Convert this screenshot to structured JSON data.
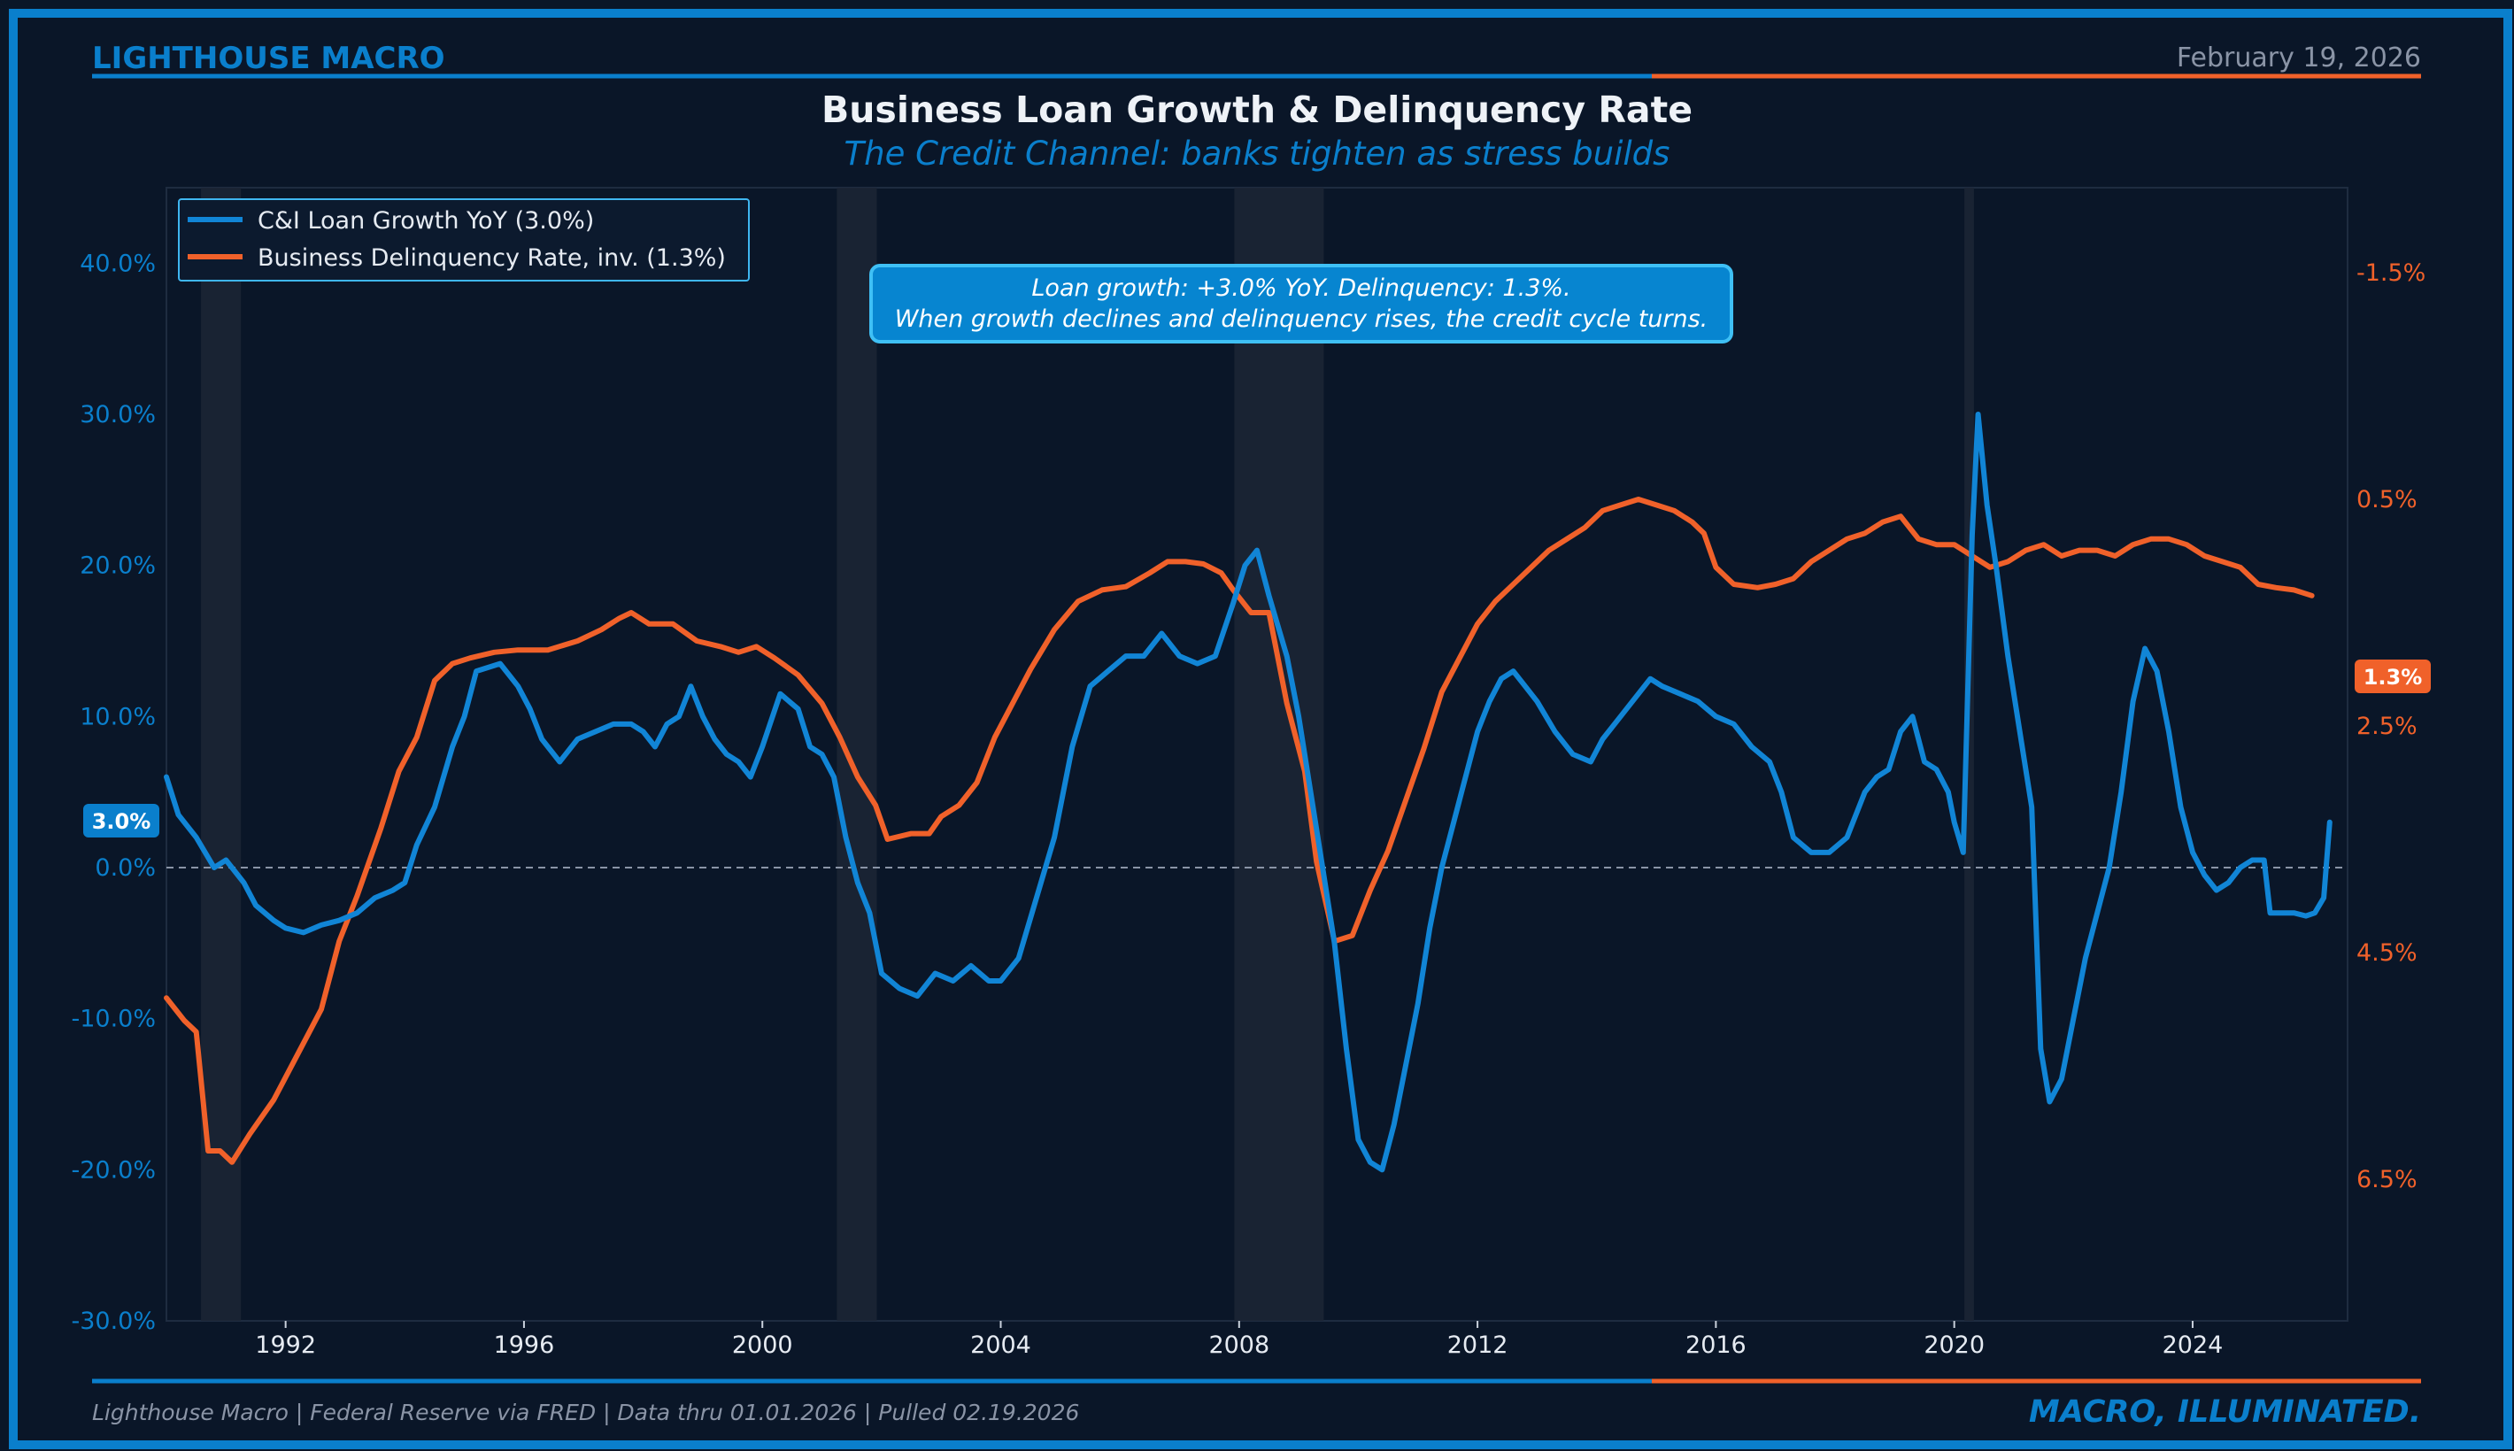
{
  "header": {
    "brand": "LIGHTHOUSE MACRO",
    "date": "February 19, 2026"
  },
  "footer": {
    "source": "Lighthouse Macro | Federal Reserve via FRED | Data thru 01.01.2026 | Pulled 02.19.2026",
    "tagline": "MACRO, ILLUMINATED."
  },
  "colors": {
    "background": "#0a1628",
    "accent_blue": "#0a7fcc",
    "accent_orange": "#f0612a",
    "loan_line": "#1185d6",
    "delinquency_line": "#f0612a",
    "recession_shade": "#1c2635"
  },
  "annotation": {
    "line1": "Loan growth: +3.0% YoY. Delinquency: 1.3%.",
    "line2": "When growth declines and delinquency rises, the credit cycle turns."
  },
  "chart_data": {
    "type": "line",
    "title": "Business Loan Growth & Delinquency Rate",
    "subtitle": "The Credit Channel: banks tighten as stress builds",
    "legend_position": "top-left",
    "x_ticks": [
      "1992",
      "1996",
      "2000",
      "2004",
      "2008",
      "2012",
      "2016",
      "2020",
      "2024"
    ],
    "x_range": [
      1990.0,
      2026.6
    ],
    "left_axis": {
      "range": [
        -30,
        45
      ],
      "ticks": [
        40,
        30,
        20,
        10,
        0,
        -10,
        -20,
        -30
      ],
      "tick_labels": [
        "40.0%",
        "30.0%",
        "20.0%",
        "10.0%",
        "0.0%",
        "-10.0%",
        "-20.0%",
        "-30.0%"
      ],
      "latest_label": "3.0%"
    },
    "right_axis": {
      "inverted": true,
      "range": [
        -2.25,
        7.75
      ],
      "ticks": [
        -1.5,
        0.5,
        2.5,
        4.5,
        6.5
      ],
      "tick_labels": [
        "-1.5%",
        "0.5%",
        "2.5%",
        "4.5%",
        "6.5%"
      ],
      "latest_label": "1.3%"
    },
    "zero_line": 0,
    "recessions": [
      [
        1990.58,
        1991.25
      ],
      [
        2001.25,
        2001.92
      ],
      [
        2007.92,
        2009.42
      ],
      [
        2020.17,
        2020.33
      ]
    ],
    "series": [
      {
        "name": "C&I Loan Growth YoY (3.0%)",
        "axis": "left",
        "color": "#1185d6",
        "points": [
          [
            1990.0,
            6
          ],
          [
            1990.2,
            3.5
          ],
          [
            1990.5,
            2
          ],
          [
            1990.8,
            0
          ],
          [
            1991.0,
            0.5
          ],
          [
            1991.3,
            -1
          ],
          [
            1991.5,
            -2.5
          ],
          [
            1991.8,
            -3.5
          ],
          [
            1992.0,
            -4
          ],
          [
            1992.3,
            -4.3
          ],
          [
            1992.6,
            -3.8
          ],
          [
            1992.9,
            -3.5
          ],
          [
            1993.2,
            -3
          ],
          [
            1993.5,
            -2
          ],
          [
            1993.8,
            -1.5
          ],
          [
            1994.0,
            -1
          ],
          [
            1994.2,
            1.5
          ],
          [
            1994.5,
            4
          ],
          [
            1994.8,
            8
          ],
          [
            1995.0,
            10
          ],
          [
            1995.2,
            13
          ],
          [
            1995.6,
            13.5
          ],
          [
            1995.9,
            12
          ],
          [
            1996.1,
            10.5
          ],
          [
            1996.3,
            8.5
          ],
          [
            1996.6,
            7
          ],
          [
            1996.9,
            8.5
          ],
          [
            1997.2,
            9
          ],
          [
            1997.5,
            9.5
          ],
          [
            1997.8,
            9.5
          ],
          [
            1998.0,
            9
          ],
          [
            1998.2,
            8
          ],
          [
            1998.4,
            9.5
          ],
          [
            1998.6,
            10
          ],
          [
            1998.8,
            12
          ],
          [
            1999.0,
            10
          ],
          [
            1999.2,
            8.5
          ],
          [
            1999.4,
            7.5
          ],
          [
            1999.6,
            7
          ],
          [
            1999.8,
            6
          ],
          [
            2000.0,
            8
          ],
          [
            2000.3,
            11.5
          ],
          [
            2000.6,
            10.5
          ],
          [
            2000.8,
            8
          ],
          [
            2001.0,
            7.5
          ],
          [
            2001.2,
            6
          ],
          [
            2001.4,
            2
          ],
          [
            2001.6,
            -1
          ],
          [
            2001.8,
            -3
          ],
          [
            2002.0,
            -7
          ],
          [
            2002.3,
            -8
          ],
          [
            2002.6,
            -8.5
          ],
          [
            2002.9,
            -7
          ],
          [
            2003.2,
            -7.5
          ],
          [
            2003.5,
            -6.5
          ],
          [
            2003.8,
            -7.5
          ],
          [
            2004.0,
            -7.5
          ],
          [
            2004.3,
            -6
          ],
          [
            2004.6,
            -2
          ],
          [
            2004.9,
            2
          ],
          [
            2005.2,
            8
          ],
          [
            2005.5,
            12
          ],
          [
            2005.8,
            13
          ],
          [
            2006.1,
            14
          ],
          [
            2006.4,
            14
          ],
          [
            2006.7,
            15.5
          ],
          [
            2007.0,
            14
          ],
          [
            2007.3,
            13.5
          ],
          [
            2007.6,
            14
          ],
          [
            2007.9,
            17.5
          ],
          [
            2008.1,
            20
          ],
          [
            2008.3,
            21
          ],
          [
            2008.5,
            18
          ],
          [
            2008.8,
            14
          ],
          [
            2009.0,
            10
          ],
          [
            2009.2,
            5
          ],
          [
            2009.4,
            0
          ],
          [
            2009.6,
            -5
          ],
          [
            2009.8,
            -12
          ],
          [
            2010.0,
            -18
          ],
          [
            2010.2,
            -19.5
          ],
          [
            2010.4,
            -20
          ],
          [
            2010.6,
            -17
          ],
          [
            2010.8,
            -13
          ],
          [
            2011.0,
            -9
          ],
          [
            2011.2,
            -4
          ],
          [
            2011.4,
            0
          ],
          [
            2011.6,
            3
          ],
          [
            2011.8,
            6
          ],
          [
            2012.0,
            9
          ],
          [
            2012.2,
            11
          ],
          [
            2012.4,
            12.5
          ],
          [
            2012.6,
            13
          ],
          [
            2012.8,
            12
          ],
          [
            2013.0,
            11
          ],
          [
            2013.3,
            9
          ],
          [
            2013.6,
            7.5
          ],
          [
            2013.9,
            7
          ],
          [
            2014.1,
            8.5
          ],
          [
            2014.4,
            10
          ],
          [
            2014.7,
            11.5
          ],
          [
            2014.9,
            12.5
          ],
          [
            2015.1,
            12
          ],
          [
            2015.4,
            11.5
          ],
          [
            2015.7,
            11
          ],
          [
            2016.0,
            10
          ],
          [
            2016.3,
            9.5
          ],
          [
            2016.6,
            8
          ],
          [
            2016.9,
            7
          ],
          [
            2017.1,
            5
          ],
          [
            2017.3,
            2
          ],
          [
            2017.6,
            1
          ],
          [
            2017.9,
            1
          ],
          [
            2018.2,
            2
          ],
          [
            2018.5,
            5
          ],
          [
            2018.7,
            6
          ],
          [
            2018.9,
            6.5
          ],
          [
            2019.1,
            9
          ],
          [
            2019.3,
            10
          ],
          [
            2019.5,
            7
          ],
          [
            2019.7,
            6.5
          ],
          [
            2019.9,
            5
          ],
          [
            2020.0,
            3
          ],
          [
            2020.15,
            1
          ],
          [
            2020.3,
            22
          ],
          [
            2020.4,
            30
          ],
          [
            2020.55,
            24
          ],
          [
            2020.7,
            20
          ],
          [
            2020.9,
            14
          ],
          [
            2021.1,
            9
          ],
          [
            2021.3,
            4
          ],
          [
            2021.45,
            -12
          ],
          [
            2021.6,
            -15.5
          ],
          [
            2021.8,
            -14
          ],
          [
            2022.0,
            -10
          ],
          [
            2022.2,
            -6
          ],
          [
            2022.4,
            -3
          ],
          [
            2022.6,
            0
          ],
          [
            2022.8,
            5
          ],
          [
            2023.0,
            11
          ],
          [
            2023.2,
            14.5
          ],
          [
            2023.4,
            13
          ],
          [
            2023.6,
            9
          ],
          [
            2023.8,
            4
          ],
          [
            2024.0,
            1
          ],
          [
            2024.2,
            -0.5
          ],
          [
            2024.4,
            -1.5
          ],
          [
            2024.6,
            -1
          ],
          [
            2024.8,
            0
          ],
          [
            2025.0,
            0.5
          ],
          [
            2025.2,
            0.5
          ],
          [
            2025.3,
            -3
          ],
          [
            2025.5,
            -3
          ],
          [
            2025.7,
            -3
          ],
          [
            2025.9,
            -3.2
          ],
          [
            2026.05,
            -3
          ],
          [
            2026.2,
            -2
          ],
          [
            2026.3,
            3
          ]
        ]
      },
      {
        "name": "Business Delinquency Rate, inv. (1.3%)",
        "axis": "right",
        "color": "#f0612a",
        "points": [
          [
            1990.0,
            4.9
          ],
          [
            1990.3,
            5.1
          ],
          [
            1990.5,
            5.2
          ],
          [
            1990.7,
            6.25
          ],
          [
            1990.9,
            6.25
          ],
          [
            1991.1,
            6.35
          ],
          [
            1991.4,
            6.1
          ],
          [
            1991.8,
            5.8
          ],
          [
            1992.2,
            5.4
          ],
          [
            1992.6,
            5.0
          ],
          [
            1992.9,
            4.4
          ],
          [
            1993.2,
            4.0
          ],
          [
            1993.6,
            3.4
          ],
          [
            1993.9,
            2.9
          ],
          [
            1994.2,
            2.6
          ],
          [
            1994.5,
            2.1
          ],
          [
            1994.8,
            1.95
          ],
          [
            1995.1,
            1.9
          ],
          [
            1995.5,
            1.85
          ],
          [
            1995.9,
            1.83
          ],
          [
            1996.4,
            1.83
          ],
          [
            1996.9,
            1.75
          ],
          [
            1997.3,
            1.65
          ],
          [
            1997.6,
            1.55
          ],
          [
            1997.8,
            1.5
          ],
          [
            1998.1,
            1.6
          ],
          [
            1998.5,
            1.6
          ],
          [
            1998.9,
            1.75
          ],
          [
            1999.3,
            1.8
          ],
          [
            1999.6,
            1.85
          ],
          [
            1999.9,
            1.8
          ],
          [
            2000.2,
            1.9
          ],
          [
            2000.6,
            2.05
          ],
          [
            2001.0,
            2.3
          ],
          [
            2001.3,
            2.6
          ],
          [
            2001.6,
            2.95
          ],
          [
            2001.9,
            3.2
          ],
          [
            2002.1,
            3.5
          ],
          [
            2002.5,
            3.45
          ],
          [
            2002.8,
            3.45
          ],
          [
            2003.0,
            3.3
          ],
          [
            2003.3,
            3.2
          ],
          [
            2003.6,
            3.0
          ],
          [
            2003.9,
            2.6
          ],
          [
            2004.2,
            2.3
          ],
          [
            2004.5,
            2.0
          ],
          [
            2004.9,
            1.65
          ],
          [
            2005.3,
            1.4
          ],
          [
            2005.7,
            1.3
          ],
          [
            2006.1,
            1.27
          ],
          [
            2006.5,
            1.15
          ],
          [
            2006.8,
            1.05
          ],
          [
            2007.1,
            1.05
          ],
          [
            2007.4,
            1.07
          ],
          [
            2007.7,
            1.15
          ],
          [
            2007.9,
            1.3
          ],
          [
            2008.2,
            1.5
          ],
          [
            2008.5,
            1.5
          ],
          [
            2008.8,
            2.3
          ],
          [
            2009.1,
            2.9
          ],
          [
            2009.3,
            3.7
          ],
          [
            2009.6,
            4.4
          ],
          [
            2009.9,
            4.35
          ],
          [
            2010.2,
            3.95
          ],
          [
            2010.5,
            3.6
          ],
          [
            2010.8,
            3.15
          ],
          [
            2011.1,
            2.7
          ],
          [
            2011.4,
            2.2
          ],
          [
            2011.7,
            1.9
          ],
          [
            2012.0,
            1.6
          ],
          [
            2012.3,
            1.4
          ],
          [
            2012.6,
            1.25
          ],
          [
            2012.9,
            1.1
          ],
          [
            2013.2,
            0.95
          ],
          [
            2013.5,
            0.85
          ],
          [
            2013.8,
            0.75
          ],
          [
            2014.1,
            0.6
          ],
          [
            2014.4,
            0.55
          ],
          [
            2014.7,
            0.5
          ],
          [
            2015.0,
            0.55
          ],
          [
            2015.3,
            0.6
          ],
          [
            2015.6,
            0.7
          ],
          [
            2015.8,
            0.8
          ],
          [
            2016.0,
            1.1
          ],
          [
            2016.3,
            1.25
          ],
          [
            2016.7,
            1.28
          ],
          [
            2017.0,
            1.25
          ],
          [
            2017.3,
            1.2
          ],
          [
            2017.6,
            1.05
          ],
          [
            2017.9,
            0.95
          ],
          [
            2018.2,
            0.85
          ],
          [
            2018.5,
            0.8
          ],
          [
            2018.8,
            0.7
          ],
          [
            2019.1,
            0.65
          ],
          [
            2019.4,
            0.85
          ],
          [
            2019.7,
            0.9
          ],
          [
            2020.0,
            0.9
          ],
          [
            2020.3,
            1.0
          ],
          [
            2020.6,
            1.1
          ],
          [
            2020.9,
            1.05
          ],
          [
            2021.2,
            0.95
          ],
          [
            2021.5,
            0.9
          ],
          [
            2021.8,
            1.0
          ],
          [
            2022.1,
            0.95
          ],
          [
            2022.4,
            0.95
          ],
          [
            2022.7,
            1.0
          ],
          [
            2023.0,
            0.9
          ],
          [
            2023.3,
            0.85
          ],
          [
            2023.6,
            0.85
          ],
          [
            2023.9,
            0.9
          ],
          [
            2024.2,
            1.0
          ],
          [
            2024.5,
            1.05
          ],
          [
            2024.8,
            1.1
          ],
          [
            2025.1,
            1.25
          ],
          [
            2025.4,
            1.28
          ],
          [
            2025.7,
            1.3
          ],
          [
            2026.0,
            1.35
          ]
        ]
      }
    ]
  }
}
